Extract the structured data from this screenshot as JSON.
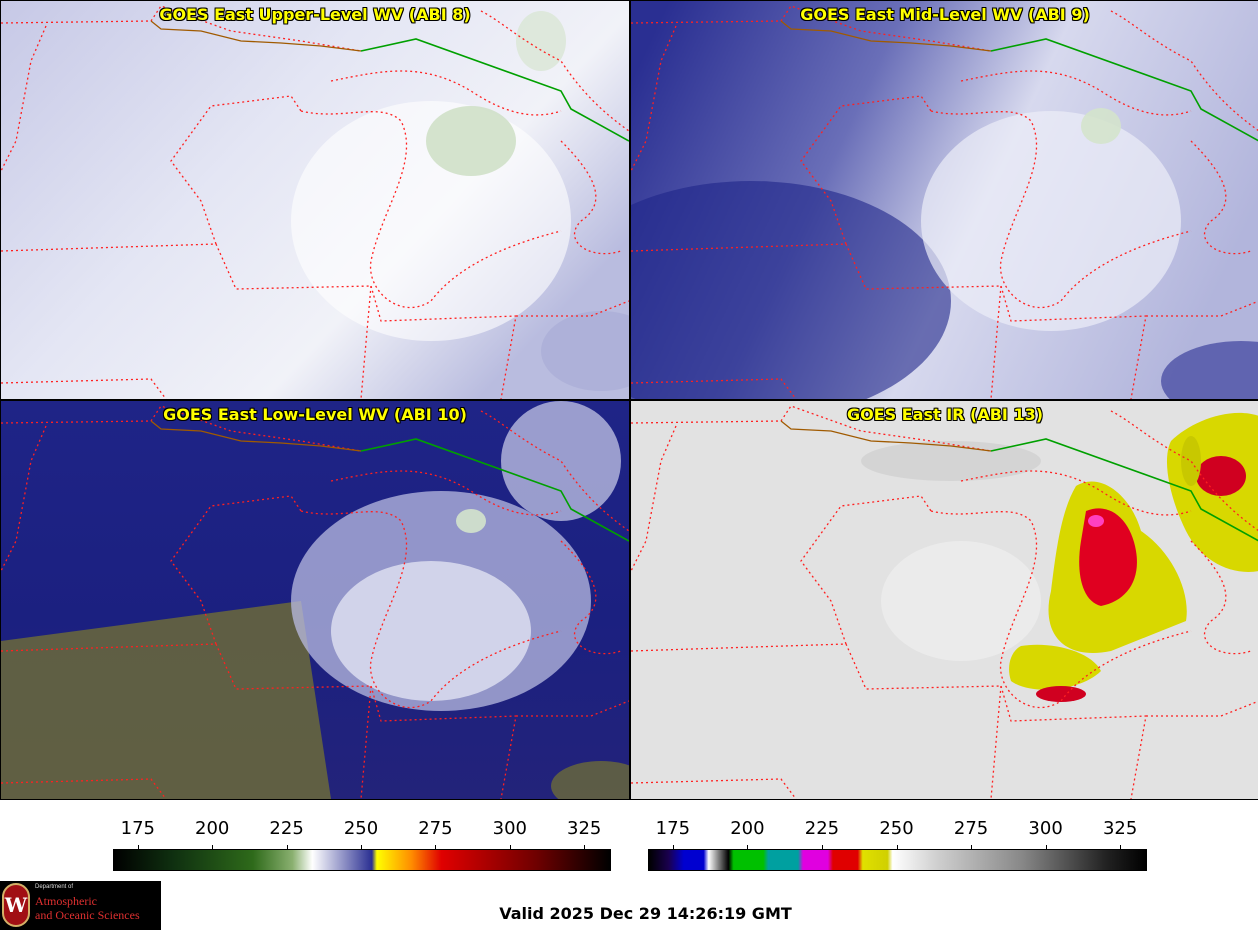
{
  "panels": [
    {
      "id": "upper",
      "title": "GOES East Upper-Level WV (ABI 8)"
    },
    {
      "id": "mid",
      "title": "GOES East Mid-Level WV (ABI 9)"
    },
    {
      "id": "low",
      "title": "GOES East Low-Level WV (ABI 10)"
    },
    {
      "id": "ir",
      "title": "GOES East IR (ABI 13)"
    }
  ],
  "colorbars": [
    {
      "name": "water-vapor-colorbar",
      "ticks": [
        "175",
        "200",
        "225",
        "250",
        "275",
        "300",
        "325"
      ]
    },
    {
      "name": "ir-colorbar",
      "ticks": [
        "175",
        "200",
        "225",
        "250",
        "275",
        "300",
        "325"
      ]
    }
  ],
  "valid_time": "Valid 2025 Dec 29 14:26:19 GMT",
  "logo": {
    "department": "Department of",
    "line1": "Atmospheric",
    "line2": "and Oceanic Sciences"
  },
  "colors": {
    "state_borders": "#ff2020",
    "country_border": "#00a000",
    "coastline": "#a05a00",
    "title_text": "#ffff00"
  }
}
